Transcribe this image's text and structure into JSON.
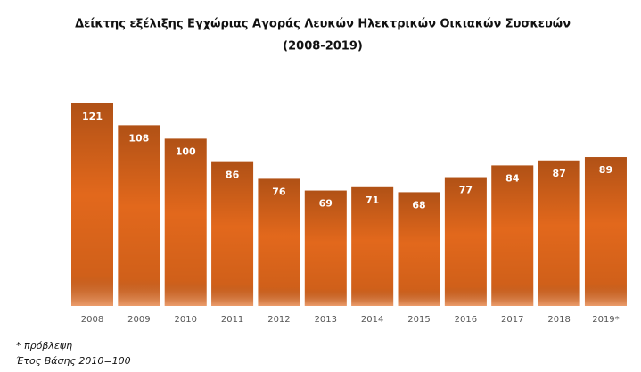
{
  "chart_data": {
    "type": "bar",
    "title": "Δείκτης εξέλιξης Εγχώριας Αγοράς Λευκών Ηλεκτρικών Οικιακών Συσκευών",
    "subtitle": "(2008-2019)",
    "categories": [
      "2008",
      "2009",
      "2010",
      "2011",
      "2012",
      "2013",
      "2014",
      "2015",
      "2016",
      "2017",
      "2018",
      "2019*"
    ],
    "values": [
      121,
      108,
      100,
      86,
      76,
      69,
      71,
      68,
      77,
      84,
      87,
      89
    ],
    "color": "#e2681c",
    "notes": [
      "* πρόβλεψη",
      "Έτος Βάσης 2010=100"
    ]
  }
}
